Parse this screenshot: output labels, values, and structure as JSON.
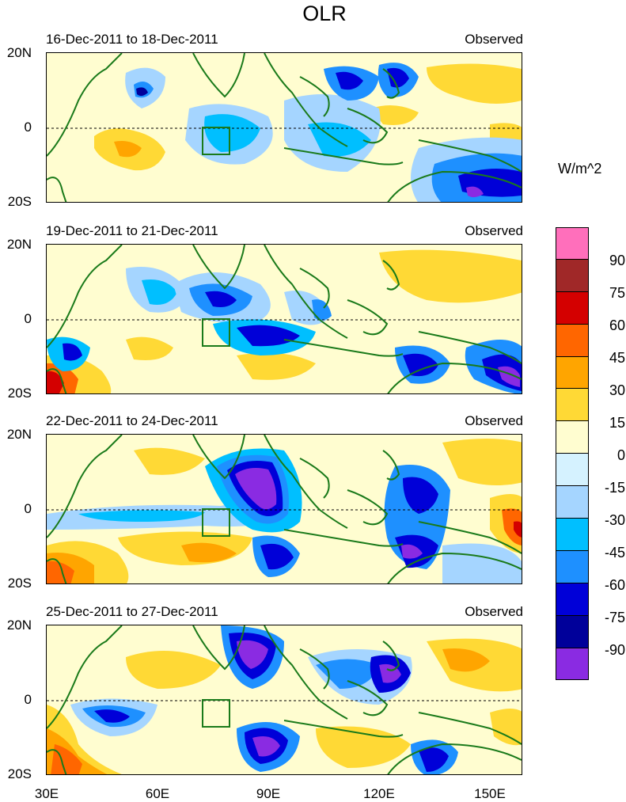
{
  "figure": {
    "title": "OLR",
    "units": "W/m^2"
  },
  "colorbar": {
    "ticks": [
      "90",
      "75",
      "60",
      "45",
      "30",
      "15",
      "0",
      "-15",
      "-30",
      "-45",
      "-60",
      "-75",
      "-90"
    ],
    "colors": [
      "#ff6fbb",
      "#a02828",
      "#d40000",
      "#ff6600",
      "#ffa500",
      "#ffd935",
      "#fffdd0",
      "#d5f2ff",
      "#a5d5ff",
      "#00bfff",
      "#1e90ff",
      "#0000d8",
      "#00009a",
      "#8a2be2"
    ]
  },
  "axes": {
    "lat_labels": [
      "20N",
      "0",
      "20S"
    ],
    "lon_labels": [
      "30E",
      "60E",
      "90E",
      "120E",
      "150E"
    ]
  },
  "panels": [
    {
      "date": "16-Dec-2011 to 18-Dec-2011",
      "tag": "Observed"
    },
    {
      "date": "19-Dec-2011 to 21-Dec-2011",
      "tag": "Observed"
    },
    {
      "date": "22-Dec-2011 to 24-Dec-2011",
      "tag": "Observed"
    },
    {
      "date": "25-Dec-2011 to 27-Dec-2011",
      "tag": "Observed"
    }
  ]
}
